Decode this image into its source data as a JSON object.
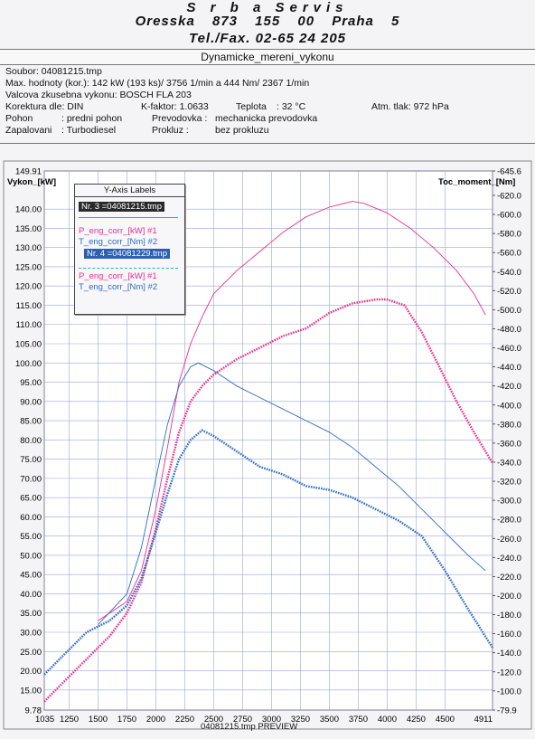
{
  "header": {
    "line1": "S r b a   Servis",
    "line2": "Oresska 873   155 00 Praha 5",
    "line3": "Tel./Fax. 02-65 24 205"
  },
  "window_title": "Dynamicke_mereni_vykonu",
  "info": {
    "soubor": "Soubor: 04081215.tmp",
    "max": "Max. hodnoty (kor.):  142 kW (193 ks)/ 3756 1/min  a   444 Nm/ 2367 1/min",
    "valcova": "Valcova zkusebna vykonu: BOSCH FLA 203",
    "korektura": "Korektura dle: DIN",
    "kfaktor": "K-faktor: 1.0633",
    "teplota_label": "Teplota",
    "teplota_val": ":   32 °C",
    "atm": "Atm. tlak:  972 hPa",
    "pohon_label": "Pohon",
    "pohon_val": ":   predni pohon",
    "prevodovka_label": "Prevodovka :",
    "prevodovka_val": "mechanicka prevodovka",
    "zapalovani_label": "Zapalovani",
    "zapalovani_val": ":   Turbodiesel",
    "prokluz_label": "Prokluz  :",
    "prokluz_val": "bez prokluzu"
  },
  "legend": {
    "title": "Y-Axis Labels",
    "file1": "Nr. 3 =04081215.tmp",
    "p1": "P_eng_corr_[kW] #1",
    "t1": "T_eng_corr_[Nm] #2",
    "file2": "Nr. 4 =04081229.tmp",
    "p2": "P_eng_corr_[kW] #1",
    "t2": "T_eng_corr_[Nm] #2"
  },
  "status": {
    "label": "04081215.tmp  PREVIEW"
  },
  "colors": {
    "power": "#e8308c",
    "torque": "#2f6cc0",
    "grid": "#9aa6d6"
  },
  "chart_data": {
    "type": "line",
    "xlabel": "",
    "x_ticks": [
      "1035",
      "1250",
      "1500",
      "1750",
      "2000",
      "2250",
      "2500",
      "2750",
      "3000",
      "3250",
      "3500",
      "3750",
      "4000",
      "4250",
      "4500",
      "4911"
    ],
    "xlim": [
      1035,
      4911
    ],
    "left_axis": {
      "label": "Vykon_[kW]",
      "ylim": [
        9.78,
        149.91
      ],
      "ticks": [
        "149.91",
        "140.00",
        "135.00",
        "130.00",
        "125.00",
        "120.00",
        "115.00",
        "110.00",
        "105.00",
        "100.00",
        "95.00",
        "90.00",
        "85.00",
        "80.00",
        "75.00",
        "70.00",
        "65.00",
        "60.00",
        "55.00",
        "50.00",
        "45.00",
        "40.00",
        "35.00",
        "30.00",
        "25.00",
        "20.00",
        "15.00",
        "9.78"
      ]
    },
    "right_axis": {
      "label": "Toc_moment_[Nm]",
      "ylim": [
        -79.9,
        -645.6
      ],
      "ticks": [
        "-645.6",
        "-620.0",
        "-600.0",
        "-580.0",
        "-560.0",
        "-540.0",
        "-520.0",
        "-500.0",
        "-480.0",
        "-460.0",
        "-440.0",
        "-420.0",
        "-400.0",
        "-380.0",
        "-360.0",
        "-340.0",
        "-320.0",
        "-300.0",
        "-280.0",
        "-260.0",
        "-240.0",
        "-220.0",
        "-200.0",
        "-180.0",
        "-160.0",
        "-140.0",
        "-120.0",
        "-100.0",
        "-79.9"
      ]
    },
    "series": [
      {
        "name": "P_eng_corr_[kW] #1",
        "file": "Nr. 3 =04081215.tmp",
        "axis": "left",
        "style": "thin",
        "color": "#e8308c",
        "points": [
          [
            1500,
            33
          ],
          [
            1750,
            38
          ],
          [
            1875,
            46
          ],
          [
            2000,
            62
          ],
          [
            2100,
            78
          ],
          [
            2200,
            95
          ],
          [
            2300,
            105
          ],
          [
            2400,
            112
          ],
          [
            2500,
            118
          ],
          [
            2700,
            124
          ],
          [
            2900,
            129
          ],
          [
            3100,
            134
          ],
          [
            3300,
            138
          ],
          [
            3500,
            140.5
          ],
          [
            3700,
            142
          ],
          [
            3800,
            141.5
          ],
          [
            4000,
            139
          ],
          [
            4200,
            135
          ],
          [
            4400,
            130
          ],
          [
            4600,
            124
          ],
          [
            4750,
            118
          ],
          [
            4850,
            112.5
          ]
        ]
      },
      {
        "name": "T_eng_corr_[Nm] #2",
        "file": "Nr. 3 =04081215.tmp",
        "axis": "left",
        "style": "thin",
        "color": "#2f6cc0",
        "points": [
          [
            1500,
            32
          ],
          [
            1750,
            40
          ],
          [
            1875,
            52
          ],
          [
            2000,
            70
          ],
          [
            2100,
            84
          ],
          [
            2200,
            94
          ],
          [
            2300,
            99
          ],
          [
            2367,
            100
          ],
          [
            2500,
            98
          ],
          [
            2700,
            94
          ],
          [
            2900,
            91
          ],
          [
            3100,
            88
          ],
          [
            3300,
            85
          ],
          [
            3500,
            82
          ],
          [
            3700,
            78
          ],
          [
            3900,
            73
          ],
          [
            4100,
            68
          ],
          [
            4300,
            62
          ],
          [
            4500,
            56
          ],
          [
            4700,
            50
          ],
          [
            4850,
            46
          ]
        ]
      },
      {
        "name": "P_eng_corr_[kW] #1",
        "file": "Nr. 4 =04081229.tmp",
        "axis": "left",
        "style": "dotted",
        "color": "#e8308c",
        "points": [
          [
            1035,
            12
          ],
          [
            1200,
            17
          ],
          [
            1400,
            23
          ],
          [
            1600,
            29
          ],
          [
            1750,
            35
          ],
          [
            1875,
            43
          ],
          [
            2000,
            57
          ],
          [
            2100,
            70
          ],
          [
            2200,
            82
          ],
          [
            2300,
            90
          ],
          [
            2400,
            94
          ],
          [
            2500,
            97
          ],
          [
            2700,
            101
          ],
          [
            2900,
            104
          ],
          [
            3100,
            107
          ],
          [
            3300,
            109
          ],
          [
            3500,
            113
          ],
          [
            3700,
            115.5
          ],
          [
            3900,
            116.5
          ],
          [
            4000,
            116.5
          ],
          [
            4150,
            115
          ],
          [
            4300,
            108
          ],
          [
            4450,
            99
          ],
          [
            4600,
            90
          ],
          [
            4750,
            82
          ],
          [
            4911,
            74
          ]
        ]
      },
      {
        "name": "T_eng_corr_[Nm] #2",
        "file": "Nr. 4 =04081229.tmp",
        "axis": "left",
        "style": "dotted",
        "color": "#2f6cc0",
        "points": [
          [
            1035,
            19
          ],
          [
            1200,
            24
          ],
          [
            1400,
            30
          ],
          [
            1600,
            33
          ],
          [
            1750,
            37
          ],
          [
            1875,
            44
          ],
          [
            2000,
            56
          ],
          [
            2100,
            66
          ],
          [
            2200,
            75
          ],
          [
            2300,
            80
          ],
          [
            2400,
            82.5
          ],
          [
            2500,
            81
          ],
          [
            2700,
            77
          ],
          [
            2900,
            73
          ],
          [
            3100,
            71
          ],
          [
            3300,
            68
          ],
          [
            3500,
            67
          ],
          [
            3700,
            65
          ],
          [
            3900,
            62
          ],
          [
            4100,
            59
          ],
          [
            4300,
            55
          ],
          [
            4500,
            46
          ],
          [
            4700,
            36
          ],
          [
            4911,
            26
          ]
        ]
      }
    ]
  }
}
